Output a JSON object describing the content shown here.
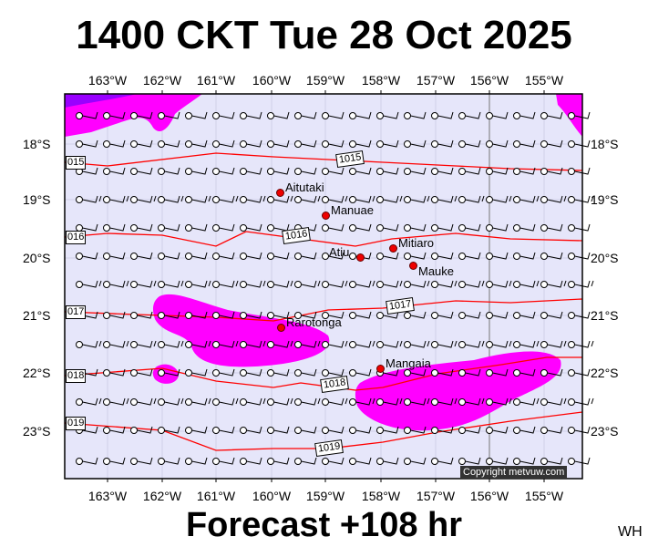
{
  "header": {
    "title": "1400 CKT Tue 28 Oct 2025"
  },
  "footer": {
    "forecast": "Forecast +108 hr",
    "initials": "WH",
    "copyright": "Copyright metvuw.com"
  },
  "axes": {
    "lon_labels": [
      "163°W",
      "162°W",
      "161°W",
      "160°W",
      "159°W",
      "158°W",
      "157°W",
      "156°W",
      "155°W"
    ],
    "lat_labels": [
      "18°S",
      "19°S",
      "20°S",
      "21°S",
      "22°S",
      "23°S"
    ]
  },
  "isobars": [
    {
      "label": "1015",
      "label_left": "015"
    },
    {
      "label": "1016",
      "label_left": "016"
    },
    {
      "label": "1017",
      "label_left": "017"
    },
    {
      "label": "1018",
      "label_left": "018"
    },
    {
      "label": "1019",
      "label_left": "019"
    }
  ],
  "islands": [
    "Aitutaki",
    "Manuae",
    "Atiu",
    "Mitiaro",
    "Mauke",
    "Rarotonga",
    "Mangaia"
  ],
  "colors": {
    "sea": "#e6e6fa",
    "rain_light": "#ff00ff",
    "rain_heavy": "#9900ff",
    "isobar": "#ff0000",
    "island": "#ee0000"
  }
}
